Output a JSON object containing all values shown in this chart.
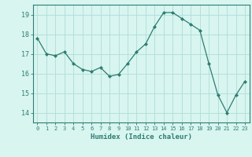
{
  "x": [
    0,
    1,
    2,
    3,
    4,
    5,
    6,
    7,
    8,
    9,
    10,
    11,
    12,
    13,
    14,
    15,
    16,
    17,
    18,
    19,
    20,
    21,
    22,
    23
  ],
  "y": [
    17.8,
    17.0,
    16.9,
    17.1,
    16.5,
    16.2,
    16.1,
    16.3,
    15.85,
    15.95,
    16.5,
    17.1,
    17.5,
    18.4,
    19.1,
    19.1,
    18.8,
    18.5,
    18.2,
    16.5,
    14.9,
    14.0,
    14.9,
    15.6
  ],
  "line_color": "#2e7d72",
  "marker_color": "#2e7d72",
  "bg_color": "#d8f5f0",
  "grid_color": "#b0ddd8",
  "xlabel": "Humidex (Indice chaleur)",
  "ylim": [
    13.5,
    19.5
  ],
  "xlim": [
    -0.5,
    23.5
  ],
  "yticks": [
    14,
    15,
    16,
    17,
    18,
    19
  ],
  "xticks": [
    0,
    1,
    2,
    3,
    4,
    5,
    6,
    7,
    8,
    9,
    10,
    11,
    12,
    13,
    14,
    15,
    16,
    17,
    18,
    19,
    20,
    21,
    22,
    23
  ],
  "xlabel_color": "#2e7d72",
  "tick_color": "#2e7d72",
  "axis_color": "#2e7d72"
}
